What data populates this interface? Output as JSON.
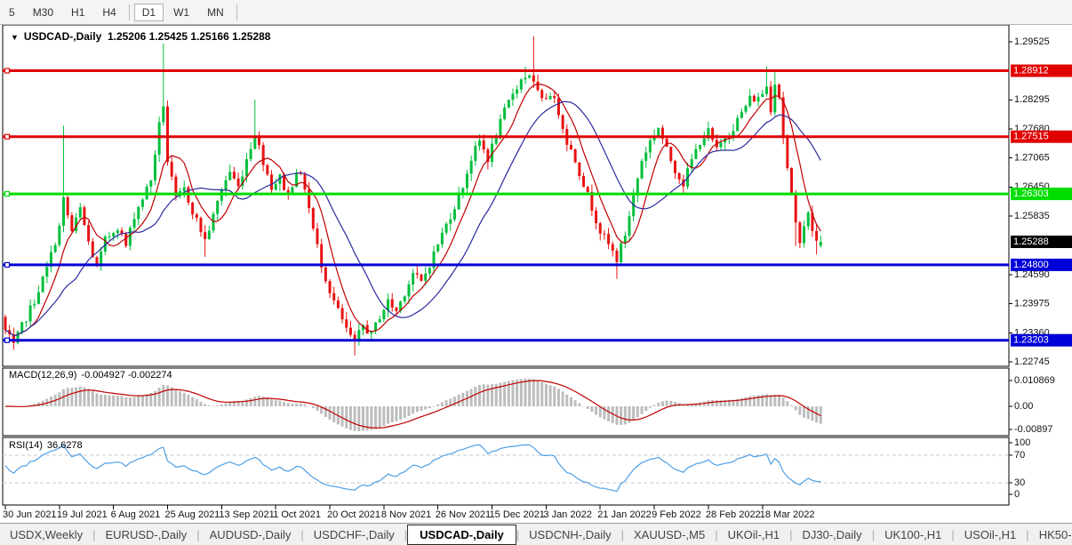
{
  "toolbar": {
    "items": [
      "5",
      "M30",
      "H1",
      "H4",
      "D1",
      "W1",
      "MN"
    ],
    "active": "D1",
    "separators_after": [
      "H4",
      "MN"
    ]
  },
  "chart_title": {
    "collapse_icon": "▼",
    "symbol_label": "USDCAD-,Daily",
    "ohlc": "1.25206 1.25425 1.25166 1.25288"
  },
  "colors": {
    "up": "#00bf3c",
    "down": "#e81212",
    "ma_fast": "#c00000",
    "ma_slow": "#2a2aa0",
    "hist": "#bdbdbd",
    "macd_signal": "#c00000",
    "rsi_line": "#4d9fe6",
    "rsi_levels": "#c8c8c8",
    "axis_text": "#111111",
    "panel_border": "#000000"
  },
  "chart_data": [
    {
      "type": "candlestick",
      "title": "USDCAD-,Daily",
      "ohlc_display": {
        "open": "1.25206",
        "high": "1.25425",
        "low": "1.25166",
        "close": "1.25288"
      },
      "y_ticks": [
        "1.29525",
        "1.28295",
        "1.27680",
        "1.27065",
        "1.26450",
        "1.25835",
        "1.24590",
        "1.23975",
        "1.23360",
        "1.22745"
      ],
      "x_labels": [
        "30 Jun 2021",
        "19 Jul 2021",
        "6 Aug 2021",
        "25 Aug 2021",
        "13 Sep 2021",
        "1 Oct 2021",
        "20 Oct 2021",
        "8 Nov 2021",
        "26 Nov 2021",
        "15 Dec 2021",
        "3 Jan 2022",
        "21 Jan 2022",
        "9 Feb 2022",
        "28 Feb 2022",
        "18 Mar 2022"
      ],
      "bars_total": 197,
      "bars_per_label": 13,
      "hlines": [
        {
          "price": 1.28912,
          "label": "1.28912",
          "color": "#e00000"
        },
        {
          "price": 1.27515,
          "label": "1.27515",
          "color": "#e00000"
        },
        {
          "price": 1.26303,
          "label": "1.26303",
          "color": "#00dd00"
        },
        {
          "price": 1.248,
          "label": "1.24800",
          "color": "#0000d8"
        },
        {
          "price": 1.23203,
          "label": "1.23203",
          "color": "#0000d8"
        }
      ],
      "current_price": {
        "price": 1.25288,
        "label": "1.25288",
        "bg": "#000000"
      },
      "ma_fast_period": 7,
      "ma_slow_period": 18,
      "close_anchors": [
        [
          0,
          1.234
        ],
        [
          2,
          1.2308
        ],
        [
          4,
          1.235
        ],
        [
          7,
          1.2405
        ],
        [
          10,
          1.2472
        ],
        [
          13,
          1.256
        ],
        [
          14,
          1.2618
        ],
        [
          16,
          1.255
        ],
        [
          18,
          1.2598
        ],
        [
          20,
          1.2528
        ],
        [
          22,
          1.2472
        ],
        [
          24,
          1.2532
        ],
        [
          27,
          1.2562
        ],
        [
          29,
          1.252
        ],
        [
          31,
          1.2585
        ],
        [
          33,
          1.2622
        ],
        [
          35,
          1.266
        ],
        [
          37,
          1.2775
        ],
        [
          38,
          1.282
        ],
        [
          39,
          1.27
        ],
        [
          41,
          1.2618
        ],
        [
          43,
          1.264
        ],
        [
          45,
          1.2595
        ],
        [
          48,
          1.2532
        ],
        [
          50,
          1.2582
        ],
        [
          52,
          1.2642
        ],
        [
          54,
          1.2678
        ],
        [
          56,
          1.2645
        ],
        [
          58,
          1.2705
        ],
        [
          60,
          1.2758
        ],
        [
          62,
          1.27
        ],
        [
          64,
          1.2645
        ],
        [
          66,
          1.2665
        ],
        [
          68,
          1.2625
        ],
        [
          70,
          1.2682
        ],
        [
          72,
          1.2645
        ],
        [
          74,
          1.2555
        ],
        [
          76,
          1.2482
        ],
        [
          78,
          1.2425
        ],
        [
          80,
          1.2382
        ],
        [
          82,
          1.2342
        ],
        [
          84,
          1.2315
        ],
        [
          86,
          1.2352
        ],
        [
          88,
          1.2332
        ],
        [
          90,
          1.2372
        ],
        [
          92,
          1.2402
        ],
        [
          94,
          1.2382
        ],
        [
          96,
          1.2422
        ],
        [
          98,
          1.2462
        ],
        [
          100,
          1.2442
        ],
        [
          102,
          1.2482
        ],
        [
          104,
          1.2525
        ],
        [
          106,
          1.2565
        ],
        [
          108,
          1.2605
        ],
        [
          110,
          1.2648
        ],
        [
          112,
          1.2705
        ],
        [
          114,
          1.2742
        ],
        [
          116,
          1.2705
        ],
        [
          118,
          1.2755
        ],
        [
          120,
          1.2805
        ],
        [
          122,
          1.2845
        ],
        [
          124,
          1.2872
        ],
        [
          126,
          1.2885
        ],
        [
          127,
          1.2862
        ],
        [
          129,
          1.2825
        ],
        [
          131,
          1.2845
        ],
        [
          133,
          1.2805
        ],
        [
          135,
          1.2742
        ],
        [
          137,
          1.2702
        ],
        [
          139,
          1.2652
        ],
        [
          141,
          1.2602
        ],
        [
          143,
          1.2552
        ],
        [
          145,
          1.2522
        ],
        [
          147,
          1.2492
        ],
        [
          149,
          1.2545
        ],
        [
          151,
          1.2625
        ],
        [
          153,
          1.2702
        ],
        [
          155,
          1.2742
        ],
        [
          157,
          1.2772
        ],
        [
          159,
          1.2722
        ],
        [
          161,
          1.2682
        ],
        [
          163,
          1.2652
        ],
        [
          165,
          1.2702
        ],
        [
          167,
          1.2742
        ],
        [
          169,
          1.2762
        ],
        [
          171,
          1.2722
        ],
        [
          173,
          1.2752
        ],
        [
          175,
          1.2772
        ],
        [
          177,
          1.2802
        ],
        [
          179,
          1.2832
        ],
        [
          181,
          1.2832
        ],
        [
          183,
          1.2858
        ],
        [
          184,
          1.2812
        ],
        [
          185,
          1.2868
        ],
        [
          186,
          1.2838
        ],
        [
          187,
          1.2752
        ],
        [
          188,
          1.2682
        ],
        [
          189,
          1.2622
        ],
        [
          190,
          1.2565
        ],
        [
          191,
          1.2535
        ],
        [
          192,
          1.2565
        ],
        [
          193,
          1.2585
        ],
        [
          194,
          1.2555
        ],
        [
          195,
          1.2528
        ],
        [
          196,
          1.25288
        ]
      ],
      "spike_highs": {
        "14": 1.2775,
        "38": 1.2949,
        "60": 1.283,
        "125": 1.29,
        "127": 1.2964,
        "183": 1.2901,
        "185": 1.2888
      },
      "spike_lows": {
        "2": 1.23,
        "48": 1.2497,
        "84": 1.2288,
        "147": 1.245,
        "190": 1.252,
        "195": 1.2502
      },
      "last_bar": {
        "open": 1.25206,
        "high": 1.25425,
        "low": 1.25166,
        "close": 1.25288
      }
    },
    {
      "type": "macd_histogram",
      "name": "MACD(12,26,9)",
      "values_label": "-0.004927 -0.002274",
      "fast": 12,
      "slow": 26,
      "signal": 9,
      "axis_ticks": [
        "0.010869",
        "0.00",
        "-0.00897"
      ]
    },
    {
      "type": "line",
      "name": "RSI(14)",
      "value_label": "36.6278",
      "period": 14,
      "levels": [
        70,
        30
      ],
      "axis_ticks": [
        "100",
        "70",
        "30",
        "0"
      ]
    }
  ],
  "tabs": {
    "items": [
      "USDX,Weekly",
      "EURUSD-,Daily",
      "AUDUSD-,Daily",
      "USDCHF-,Daily",
      "USDCAD-,Daily",
      "USDCNH-,Daily",
      "XAUUSD-,M5",
      "UKOil-,H1",
      "DJ30-,Daily",
      "UK100-,H1",
      "USOil-,H1",
      "HK50-,H1"
    ],
    "active": "USDCAD-,Daily",
    "scroll_left": "◄",
    "scroll_right": "►"
  }
}
